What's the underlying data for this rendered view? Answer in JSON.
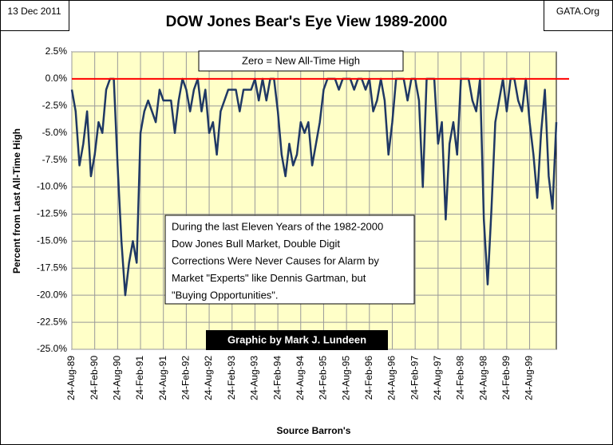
{
  "chart_data": {
    "type": "line",
    "title": "DOW Jones Bear's Eye View 1989-2000",
    "date_note": "13 Dec 2011",
    "site_note": "GATA.Org",
    "y_label": "Percent from Last All-Time High",
    "x_label": "Source Barron's",
    "zero_note": "Zero = New All-Time High",
    "commentary": [
      "During the last Eleven Years of the 1982-2000",
      "Dow Jones Bull Market, Double Digit",
      "Corrections Were Never Causes for Alarm by",
      "Market \"Experts\" like Dennis Gartman, but",
      "\"Buying Opportunities\"."
    ],
    "credit": "Graphic by Mark J. Lundeen",
    "grid": true,
    "background": "#ffffc8",
    "reference_line": {
      "value": 0,
      "color": "#ff0000"
    },
    "categories": [
      "24-Aug-89",
      null,
      null,
      null,
      null,
      null,
      "24-Feb-90",
      null,
      null,
      null,
      null,
      null,
      "24-Aug-90",
      null,
      null,
      null,
      null,
      null,
      "24-Feb-91",
      null,
      null,
      null,
      null,
      null,
      "24-Aug-91",
      null,
      null,
      null,
      null,
      null,
      "24-Feb-92",
      null,
      null,
      null,
      null,
      null,
      "24-Aug-92",
      null,
      null,
      null,
      null,
      null,
      "24-Feb-93",
      null,
      null,
      null,
      null,
      null,
      "24-Aug-93",
      null,
      null,
      null,
      null,
      null,
      "24-Feb-94",
      null,
      null,
      null,
      null,
      null,
      "24-Aug-94",
      null,
      null,
      null,
      null,
      null,
      "24-Feb-95",
      null,
      null,
      null,
      null,
      null,
      "24-Aug-95",
      null,
      null,
      null,
      null,
      null,
      "24-Feb-96",
      null,
      null,
      null,
      null,
      null,
      "24-Aug-96",
      null,
      null,
      null,
      null,
      null,
      "24-Feb-97",
      null,
      null,
      null,
      null,
      null,
      "24-Aug-97",
      null,
      null,
      null,
      null,
      null,
      "24-Feb-98",
      null,
      null,
      null,
      null,
      null,
      "24-Aug-98",
      null,
      null,
      null,
      null,
      null,
      "24-Feb-99",
      null,
      null,
      null,
      null,
      null,
      "24-Aug-99",
      null,
      null,
      null,
      null,
      null,
      null,
      null
    ],
    "series": [
      {
        "name": "DOW Jones",
        "color": "#1f3864",
        "values": [
          -1,
          -3,
          -8,
          -6,
          -3,
          -9,
          -7,
          -4,
          -5,
          -1,
          0,
          0,
          -8,
          -15,
          -20,
          -17,
          -15,
          -17,
          -5,
          -3,
          -2,
          -3,
          -4,
          -1,
          -2,
          -2,
          -2,
          -5,
          -2,
          0,
          -1,
          -3,
          -1,
          0,
          -3,
          -1,
          -5,
          -4,
          -7,
          -3,
          -2,
          -1,
          -1,
          -1,
          -3,
          -1,
          -1,
          -1,
          0,
          -2,
          0,
          -2,
          0,
          0,
          -3,
          -7,
          -9,
          -6,
          -8,
          -7,
          -4,
          -5,
          -4,
          -8,
          -6,
          -4,
          -1,
          0,
          0,
          0,
          -1,
          0,
          0,
          0,
          -1,
          0,
          0,
          -1,
          0,
          -3,
          -2,
          0,
          -2,
          -7,
          -4,
          0,
          0,
          0,
          -2,
          0,
          0,
          -2,
          -10,
          0,
          0,
          0,
          -6,
          -4,
          -13,
          -6,
          -4,
          -7,
          0,
          0,
          0,
          -2,
          -3,
          0,
          -13,
          -19,
          -12,
          -4,
          -2,
          0,
          -3,
          0,
          0,
          -2,
          -3,
          0,
          -4,
          -7,
          -11,
          -5,
          -1,
          -9,
          -12,
          -4
        ]
      }
    ],
    "ylim": [
      -25,
      2.5
    ],
    "yticks": [
      {
        "value": 2.5,
        "label": "2.5%"
      },
      {
        "value": 0,
        "label": "0.0%"
      },
      {
        "value": -2.5,
        "label": "-2.5%"
      },
      {
        "value": -5,
        "label": "-5.0%"
      },
      {
        "value": -7.5,
        "label": "-7.5%"
      },
      {
        "value": -10,
        "label": "-10.0%"
      },
      {
        "value": -12.5,
        "label": "-12.5%"
      },
      {
        "value": -15,
        "label": "-15.0%"
      },
      {
        "value": -17.5,
        "label": "-17.5%"
      },
      {
        "value": -20,
        "label": "-20.0%"
      },
      {
        "value": -22.5,
        "label": "-22.5%"
      },
      {
        "value": -25,
        "label": "-25.0%"
      }
    ]
  }
}
